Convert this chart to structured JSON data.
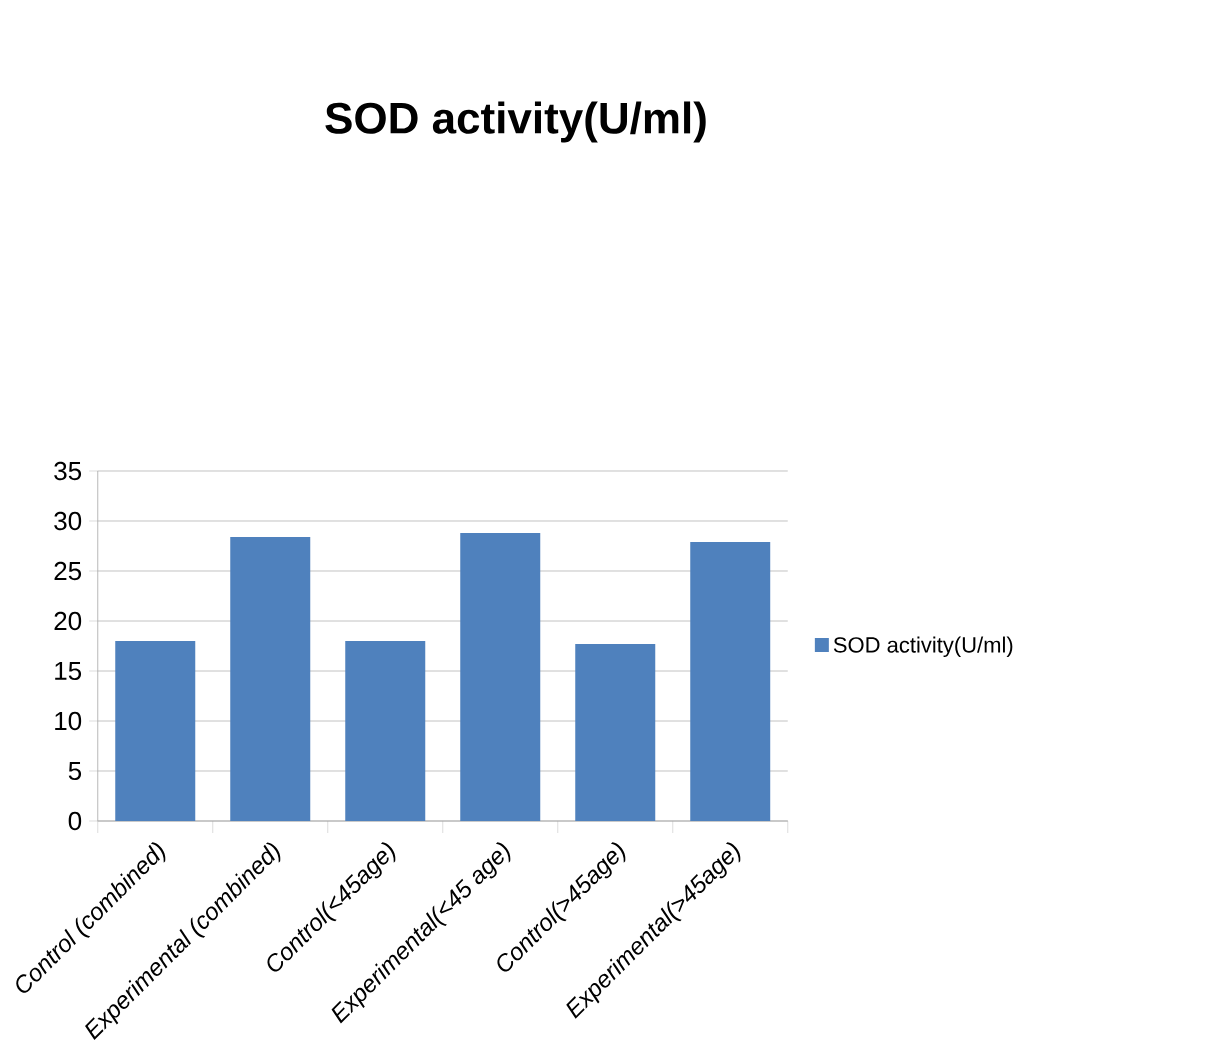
{
  "chart_data": {
    "type": "bar",
    "title": "SOD activity(U/ml)",
    "categories": [
      "Control (combined)",
      "Experimental (combined)",
      "Control(<45age)",
      "Experimental(<45 age)",
      "Control(>45age)",
      "Experimental(>45age)"
    ],
    "series": [
      {
        "name": "SOD activity(U/ml)",
        "color": "#4f81bd",
        "values": [
          18,
          28.4,
          18,
          28.8,
          17.7,
          27.9
        ]
      }
    ],
    "ylim": [
      0,
      35
    ],
    "yticks": [
      0,
      5,
      10,
      15,
      20,
      25,
      30,
      35
    ],
    "grid": "y",
    "legend": "right"
  }
}
